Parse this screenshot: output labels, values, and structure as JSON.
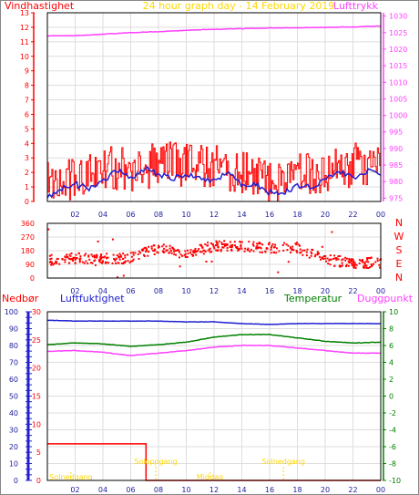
{
  "title": "24 hour graph day - 14 February 2019",
  "colors": {
    "wind": "#ff0000",
    "gust": "#ff0000",
    "wind_avg": "#2020d0",
    "pressure": "#ff40ff",
    "dir": "#ff0000",
    "temp": "#008000",
    "dew": "#ff40ff",
    "humidity": "#2020d0",
    "rain": "#ff0000",
    "sun": "#ffd700",
    "frame": "#000000",
    "grid": "#dddddd"
  },
  "chart_data": [
    {
      "type": "line",
      "title": "24 hour graph day - 14 February 2019",
      "left_label": "Vindhastighet",
      "right_label": "Lufttrykk",
      "x_ticks": [
        "02",
        "04",
        "06",
        "08",
        "10",
        "12",
        "14",
        "16",
        "18",
        "20",
        "22",
        "00"
      ],
      "y_left_ticks": [
        0,
        1,
        2,
        3,
        4,
        5,
        6,
        7,
        8,
        9,
        10,
        11,
        12,
        13
      ],
      "y_right_ticks": [
        975,
        980,
        985,
        990,
        995,
        1000,
        1005,
        1010,
        1015,
        1020,
        1025,
        1030
      ],
      "ylim_left": [
        0,
        13
      ],
      "ylim_right": [
        974,
        1031
      ],
      "pressure": {
        "x": [
          0,
          2,
          4,
          6,
          8,
          10,
          12,
          14,
          16,
          18,
          20,
          22,
          24
        ],
        "values": [
          1024.0,
          1024.1,
          1024.5,
          1025.0,
          1025.3,
          1025.7,
          1026.0,
          1026.2,
          1026.4,
          1026.5,
          1026.6,
          1026.7,
          1027.0
        ]
      },
      "wind_avg": {
        "x": [
          0,
          1,
          2,
          3,
          4,
          5,
          6,
          7,
          8,
          9,
          10,
          11,
          12,
          13,
          14,
          15,
          16,
          17,
          18,
          19,
          20,
          21,
          22,
          23,
          24
        ],
        "values": [
          0.3,
          0.9,
          1.2,
          0.9,
          1.4,
          2.2,
          1.5,
          2.3,
          1.9,
          1.6,
          1.8,
          1.7,
          1.4,
          2.0,
          1.1,
          1.2,
          0.6,
          0.6,
          1.1,
          1.0,
          1.6,
          2.1,
          1.6,
          2.1,
          1.8
        ]
      },
      "gust": {
        "x": [
          0,
          1,
          2,
          3,
          4,
          5,
          6,
          7,
          8,
          9,
          10,
          11,
          12,
          13,
          14,
          15,
          16,
          17,
          18,
          19,
          20,
          21,
          22,
          23,
          24
        ],
        "values": [
          2.6,
          2.5,
          2.7,
          3.0,
          3.2,
          3.4,
          3.0,
          3.3,
          3.7,
          3.6,
          3.6,
          3.4,
          3.6,
          3.3,
          3.0,
          3.1,
          2.3,
          2.2,
          3.4,
          3.1,
          2.8,
          3.4,
          3.6,
          3.7,
          4.5
        ]
      }
    },
    {
      "type": "scatter",
      "title": "",
      "y_ticks": [
        0,
        90,
        180,
        270,
        360
      ],
      "compass": [
        "N",
        "W",
        "S",
        "E",
        "N"
      ],
      "ylim": [
        0,
        360
      ],
      "x_ticks": [
        "02",
        "04",
        "06",
        "08",
        "10",
        "12",
        "14",
        "16",
        "18",
        "20",
        "22",
        "00"
      ],
      "direction_trend": {
        "x": [
          0,
          2,
          4,
          6,
          8,
          10,
          12,
          14,
          16,
          18,
          20,
          22,
          24
        ],
        "values": [
          120,
          130,
          130,
          130,
          200,
          160,
          210,
          210,
          200,
          200,
          120,
          100,
          100
        ]
      }
    },
    {
      "type": "line",
      "title": "",
      "labels": {
        "rain": "Nedbør",
        "humidity": "Luftfuktighet",
        "temperature": "Temperatur",
        "dew": "Duggpunkt"
      },
      "y_left_ticks": [
        0,
        5,
        10,
        15,
        20,
        25,
        30,
        35,
        40,
        45,
        50,
        55,
        60,
        65,
        70,
        75,
        80,
        85,
        90,
        95,
        100
      ],
      "y_rain_ticks": [
        0,
        1,
        2,
        3,
        4,
        5,
        6,
        7,
        8,
        9,
        10,
        11,
        12,
        13,
        14,
        15,
        16,
        17,
        18,
        19,
        20,
        21,
        22,
        23,
        24,
        25,
        26,
        27,
        28,
        29,
        30
      ],
      "y_right_ticks": [
        10,
        8,
        6,
        4,
        2,
        0,
        -2,
        -4,
        -6,
        -8,
        -10
      ],
      "ylim_left": [
        0,
        100
      ],
      "ylim_right": [
        -10,
        10
      ],
      "x_ticks": [
        "02",
        "04",
        "06",
        "08",
        "10",
        "12",
        "14",
        "16",
        "18",
        "20",
        "22",
        "00"
      ],
      "humidity": {
        "x": [
          0,
          2,
          4,
          6,
          8,
          10,
          12,
          14,
          16,
          18,
          20,
          22,
          24
        ],
        "values": [
          95,
          94.5,
          94.5,
          94.5,
          94.5,
          94,
          94,
          93,
          92.5,
          93,
          93,
          93,
          93
        ]
      },
      "temperature": {
        "x": [
          0,
          2,
          4,
          6,
          8,
          10,
          12,
          14,
          16,
          18,
          20,
          22,
          24
        ],
        "values": [
          6.1,
          6.3,
          6.2,
          5.9,
          6.1,
          6.4,
          7.0,
          7.3,
          7.3,
          6.9,
          6.5,
          6.3,
          6.4
        ]
      },
      "dewpoint": {
        "x": [
          0,
          2,
          4,
          6,
          8,
          10,
          12,
          14,
          16,
          18,
          20,
          22,
          24
        ],
        "values": [
          5.3,
          5.4,
          5.2,
          4.8,
          5.1,
          5.4,
          5.8,
          6.0,
          6.0,
          5.7,
          5.4,
          5.1,
          5.1
        ]
      },
      "rain": {
        "x": [
          0,
          7.1,
          7.1,
          24
        ],
        "values": [
          6.5,
          6.5,
          0,
          0
        ]
      },
      "sun_events": [
        {
          "label": "Solnedgang",
          "x": 1.7,
          "low": true
        },
        {
          "label": "Soloppgang",
          "x": 7.8,
          "low": false
        },
        {
          "label": "Middag",
          "x": 11.7,
          "low": true
        },
        {
          "label": "Solnedgang",
          "x": 17.0,
          "low": false
        }
      ]
    }
  ]
}
